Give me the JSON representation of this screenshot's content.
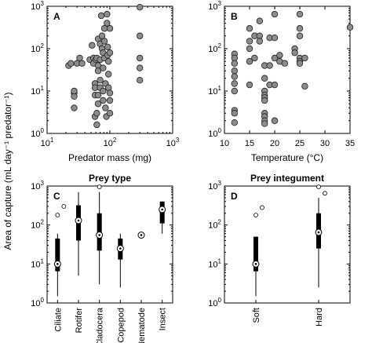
{
  "ylabel": "Area of capture (mL day⁻¹ predator⁻¹)",
  "chart_data": [
    {
      "panel": "A",
      "type": "scatter",
      "xlabel": "Predator mass (mg)",
      "x_scale": "log",
      "y_scale": "log",
      "xlim": [
        10,
        1000
      ],
      "ylim": [
        1,
        1000
      ],
      "x_ticks": [
        "10^1",
        "10^2",
        "10^3"
      ],
      "y_ticks": [
        "10^0",
        "10^1",
        "10^2",
        "10^3"
      ],
      "point_color": "#8c8c8c",
      "points": [
        {
          "x": 22,
          "y": 40
        },
        {
          "x": 24,
          "y": 45
        },
        {
          "x": 27,
          "y": 9
        },
        {
          "x": 27,
          "y": 7.5
        },
        {
          "x": 27,
          "y": 10
        },
        {
          "x": 27,
          "y": 4
        },
        {
          "x": 30,
          "y": 45
        },
        {
          "x": 33,
          "y": 60
        },
        {
          "x": 36,
          "y": 45
        },
        {
          "x": 48,
          "y": 55
        },
        {
          "x": 52,
          "y": 120
        },
        {
          "x": 55,
          "y": 60
        },
        {
          "x": 55,
          "y": 45
        },
        {
          "x": 58,
          "y": 15
        },
        {
          "x": 58,
          "y": 8
        },
        {
          "x": 58,
          "y": 12
        },
        {
          "x": 58,
          "y": 2.5
        },
        {
          "x": 60,
          "y": 55
        },
        {
          "x": 62,
          "y": 60
        },
        {
          "x": 62,
          "y": 3
        },
        {
          "x": 62,
          "y": 1.6
        },
        {
          "x": 65,
          "y": 170
        },
        {
          "x": 65,
          "y": 40
        },
        {
          "x": 65,
          "y": 30
        },
        {
          "x": 65,
          "y": 8
        },
        {
          "x": 65,
          "y": 5
        },
        {
          "x": 70,
          "y": 130
        },
        {
          "x": 70,
          "y": 55
        },
        {
          "x": 70,
          "y": 18
        },
        {
          "x": 70,
          "y": 12
        },
        {
          "x": 73,
          "y": 600
        },
        {
          "x": 75,
          "y": 200
        },
        {
          "x": 75,
          "y": 100
        },
        {
          "x": 78,
          "y": 80
        },
        {
          "x": 78,
          "y": 35
        },
        {
          "x": 78,
          "y": 10
        },
        {
          "x": 78,
          "y": 6
        },
        {
          "x": 82,
          "y": 300
        },
        {
          "x": 82,
          "y": 150
        },
        {
          "x": 82,
          "y": 60
        },
        {
          "x": 85,
          "y": 15
        },
        {
          "x": 85,
          "y": 4
        },
        {
          "x": 88,
          "y": 2.5
        },
        {
          "x": 90,
          "y": 650
        },
        {
          "x": 90,
          "y": 400
        },
        {
          "x": 92,
          "y": 110
        },
        {
          "x": 92,
          "y": 70
        },
        {
          "x": 95,
          "y": 50
        },
        {
          "x": 95,
          "y": 25
        },
        {
          "x": 95,
          "y": 12
        },
        {
          "x": 100,
          "y": 300
        },
        {
          "x": 100,
          "y": 80
        },
        {
          "x": 100,
          "y": 9
        },
        {
          "x": 100,
          "y": 6
        },
        {
          "x": 100,
          "y": 3
        },
        {
          "x": 300,
          "y": 950
        },
        {
          "x": 300,
          "y": 200
        },
        {
          "x": 300,
          "y": 60
        },
        {
          "x": 300,
          "y": 35
        },
        {
          "x": 300,
          "y": 18
        }
      ]
    },
    {
      "panel": "B",
      "type": "scatter",
      "xlabel": "Temperature (°C)",
      "x_scale": "linear",
      "y_scale": "log",
      "xlim": [
        10,
        35
      ],
      "ylim": [
        1,
        1000
      ],
      "x_ticks": [
        "10",
        "15",
        "20",
        "25",
        "30",
        "35"
      ],
      "y_ticks": [
        "10^0",
        "10^1",
        "10^2",
        "10^3"
      ],
      "point_color": "#8c8c8c",
      "points": [
        {
          "x": 12,
          "y": 75
        },
        {
          "x": 12,
          "y": 60
        },
        {
          "x": 12,
          "y": 45
        },
        {
          "x": 12,
          "y": 30
        },
        {
          "x": 12,
          "y": 22
        },
        {
          "x": 12,
          "y": 15
        },
        {
          "x": 12,
          "y": 10
        },
        {
          "x": 12,
          "y": 3.5
        },
        {
          "x": 12,
          "y": 3
        },
        {
          "x": 12,
          "y": 1.8
        },
        {
          "x": 15,
          "y": 300
        },
        {
          "x": 15,
          "y": 150
        },
        {
          "x": 15,
          "y": 100
        },
        {
          "x": 15,
          "y": 50
        },
        {
          "x": 15,
          "y": 14
        },
        {
          "x": 16,
          "y": 200
        },
        {
          "x": 16,
          "y": 60
        },
        {
          "x": 17,
          "y": 450
        },
        {
          "x": 17,
          "y": 200
        },
        {
          "x": 17,
          "y": 150
        },
        {
          "x": 18,
          "y": 40
        },
        {
          "x": 18,
          "y": 20
        },
        {
          "x": 18,
          "y": 10
        },
        {
          "x": 18,
          "y": 8
        },
        {
          "x": 18,
          "y": 7
        },
        {
          "x": 18,
          "y": 6
        },
        {
          "x": 18,
          "y": 3
        },
        {
          "x": 18,
          "y": 2.5
        },
        {
          "x": 18,
          "y": 2
        },
        {
          "x": 18,
          "y": 1.7
        },
        {
          "x": 19,
          "y": 180
        },
        {
          "x": 19,
          "y": 40
        },
        {
          "x": 19,
          "y": 14
        },
        {
          "x": 20,
          "y": 650
        },
        {
          "x": 20,
          "y": 180
        },
        {
          "x": 20,
          "y": 60
        },
        {
          "x": 20,
          "y": 14
        },
        {
          "x": 20,
          "y": 2
        },
        {
          "x": 21,
          "y": 70
        },
        {
          "x": 21,
          "y": 50
        },
        {
          "x": 22,
          "y": 45
        },
        {
          "x": 24,
          "y": 100
        },
        {
          "x": 24,
          "y": 80
        },
        {
          "x": 25,
          "y": 650
        },
        {
          "x": 25,
          "y": 300
        },
        {
          "x": 25,
          "y": 200
        },
        {
          "x": 25,
          "y": 60
        },
        {
          "x": 25,
          "y": 50
        },
        {
          "x": 25,
          "y": 45
        },
        {
          "x": 26,
          "y": 60
        },
        {
          "x": 26,
          "y": 13
        },
        {
          "x": 35,
          "y": 320
        }
      ]
    },
    {
      "panel": "C",
      "type": "box",
      "title": "Prey type",
      "y_scale": "log",
      "ylim": [
        1,
        1000
      ],
      "y_ticks": [
        "10^0",
        "10^1",
        "10^2",
        "10^3"
      ],
      "categories": [
        "Ciliate",
        "Rotifer",
        "Cladocera",
        "Copepod",
        "Nematode",
        "Insect"
      ],
      "boxes": [
        {
          "median": 10,
          "q1": 6.5,
          "q3": 45,
          "whisker_low": 1.5,
          "whisker_high": 60,
          "outliers": [
            180,
            300
          ]
        },
        {
          "median": 130,
          "q1": 40,
          "q3": 320,
          "whisker_low": 5,
          "whisker_high": 700,
          "outliers": []
        },
        {
          "median": 55,
          "q1": 22,
          "q3": 200,
          "whisker_low": 3,
          "whisker_high": 700,
          "outliers": [
            950
          ]
        },
        {
          "median": 25,
          "q1": 13,
          "q3": 45,
          "whisker_low": 2.5,
          "whisker_high": 60,
          "outliers": []
        },
        {
          "median": 55,
          "q1": 55,
          "q3": 55,
          "whisker_low": 55,
          "whisker_high": 55,
          "outliers": []
        },
        {
          "median": 250,
          "q1": 110,
          "q3": 400,
          "whisker_low": 60,
          "whisker_high": 400,
          "outliers": []
        }
      ]
    },
    {
      "panel": "D",
      "type": "box",
      "title": "Prey integument",
      "y_scale": "log",
      "ylim": [
        1,
        1000
      ],
      "y_ticks": [
        "10^0",
        "10^1",
        "10^2",
        "10^3"
      ],
      "categories": [
        "Soft",
        "Hard"
      ],
      "boxes": [
        {
          "median": 10,
          "q1": 6.5,
          "q3": 50,
          "whisker_low": 1.5,
          "whisker_high": 50,
          "outliers": [
            180,
            280
          ]
        },
        {
          "median": 65,
          "q1": 25,
          "q3": 200,
          "whisker_low": 2.5,
          "whisker_high": 500,
          "outliers": [
            950,
            650
          ]
        }
      ]
    }
  ]
}
